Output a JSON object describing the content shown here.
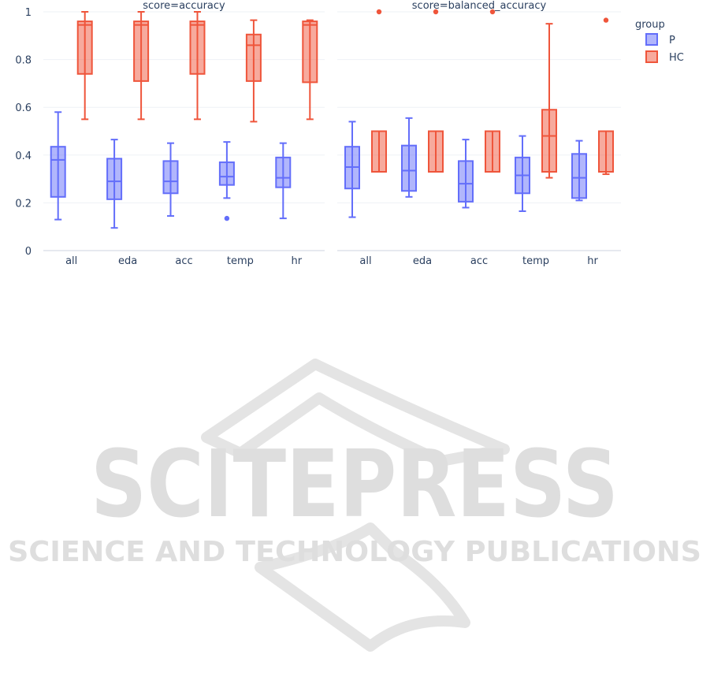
{
  "chart_data": {
    "type": "box",
    "legend": {
      "title": "group",
      "placement": "top-right"
    },
    "ylim": [
      0,
      1
    ],
    "yticks": [
      {
        "value": 0,
        "label": "0"
      },
      {
        "value": 0.2,
        "label": "0.2"
      },
      {
        "value": 0.4,
        "label": "0.4"
      },
      {
        "value": 0.6,
        "label": "0.6"
      },
      {
        "value": 0.8,
        "label": "0.8"
      },
      {
        "value": 1,
        "label": "1"
      }
    ],
    "grid": true,
    "categories": [
      "all",
      "eda",
      "acc",
      "temp",
      "hr"
    ],
    "series": [
      {
        "name": "P",
        "color": "#636efa",
        "fill": "rgba(99,110,250,0.5)"
      },
      {
        "name": "HC",
        "color": "#ef553b",
        "fill": "rgba(239,85,59,0.5)"
      }
    ],
    "panels": [
      {
        "title": "score=accuracy",
        "boxes": {
          "P": [
            {
              "min": 0.13,
              "q1": 0.225,
              "median": 0.38,
              "q3": 0.435,
              "max": 0.58,
              "outliers": []
            },
            {
              "min": 0.095,
              "q1": 0.215,
              "median": 0.29,
              "q3": 0.385,
              "max": 0.465,
              "outliers": []
            },
            {
              "min": 0.145,
              "q1": 0.24,
              "median": 0.29,
              "q3": 0.375,
              "max": 0.45,
              "outliers": []
            },
            {
              "min": 0.22,
              "q1": 0.275,
              "median": 0.31,
              "q3": 0.37,
              "max": 0.455,
              "outliers": [
                0.135
              ]
            },
            {
              "min": 0.135,
              "q1": 0.265,
              "median": 0.305,
              "q3": 0.39,
              "max": 0.45,
              "outliers": []
            }
          ],
          "HC": [
            {
              "min": 0.55,
              "q1": 0.74,
              "median": 0.945,
              "q3": 0.96,
              "max": 1.0,
              "outliers": []
            },
            {
              "min": 0.55,
              "q1": 0.71,
              "median": 0.945,
              "q3": 0.96,
              "max": 1.0,
              "outliers": []
            },
            {
              "min": 0.55,
              "q1": 0.74,
              "median": 0.945,
              "q3": 0.96,
              "max": 1.0,
              "outliers": []
            },
            {
              "min": 0.54,
              "q1": 0.71,
              "median": 0.86,
              "q3": 0.905,
              "max": 0.965,
              "outliers": []
            },
            {
              "min": 0.55,
              "q1": 0.705,
              "median": 0.945,
              "q3": 0.96,
              "max": 0.965,
              "outliers": []
            }
          ]
        }
      },
      {
        "title": "score=balanced_accuracy",
        "boxes": {
          "P": [
            {
              "min": 0.14,
              "q1": 0.26,
              "median": 0.35,
              "q3": 0.435,
              "max": 0.54,
              "outliers": []
            },
            {
              "min": 0.225,
              "q1": 0.25,
              "median": 0.335,
              "q3": 0.44,
              "max": 0.555,
              "outliers": []
            },
            {
              "min": 0.18,
              "q1": 0.205,
              "median": 0.28,
              "q3": 0.375,
              "max": 0.465,
              "outliers": []
            },
            {
              "min": 0.165,
              "q1": 0.24,
              "median": 0.315,
              "q3": 0.39,
              "max": 0.48,
              "outliers": []
            },
            {
              "min": 0.21,
              "q1": 0.22,
              "median": 0.305,
              "q3": 0.405,
              "max": 0.46,
              "outliers": []
            }
          ],
          "HC": [
            {
              "min": 0.33,
              "q1": 0.33,
              "median": 0.5,
              "q3": 0.5,
              "max": 0.5,
              "outliers": [
                1.0
              ]
            },
            {
              "min": 0.33,
              "q1": 0.33,
              "median": 0.5,
              "q3": 0.5,
              "max": 0.5,
              "outliers": [
                1.0
              ]
            },
            {
              "min": 0.33,
              "q1": 0.33,
              "median": 0.5,
              "q3": 0.5,
              "max": 0.5,
              "outliers": [
                1.0
              ]
            },
            {
              "min": 0.305,
              "q1": 0.33,
              "median": 0.48,
              "q3": 0.59,
              "max": 0.95,
              "outliers": []
            },
            {
              "min": 0.32,
              "q1": 0.33,
              "median": 0.5,
              "q3": 0.5,
              "max": 0.5,
              "outliers": [
                0.965
              ]
            }
          ]
        }
      }
    ]
  },
  "watermark": {
    "brand": "SCITEPRESS",
    "tagline": "SCIENCE AND TECHNOLOGY PUBLICATIONS"
  }
}
